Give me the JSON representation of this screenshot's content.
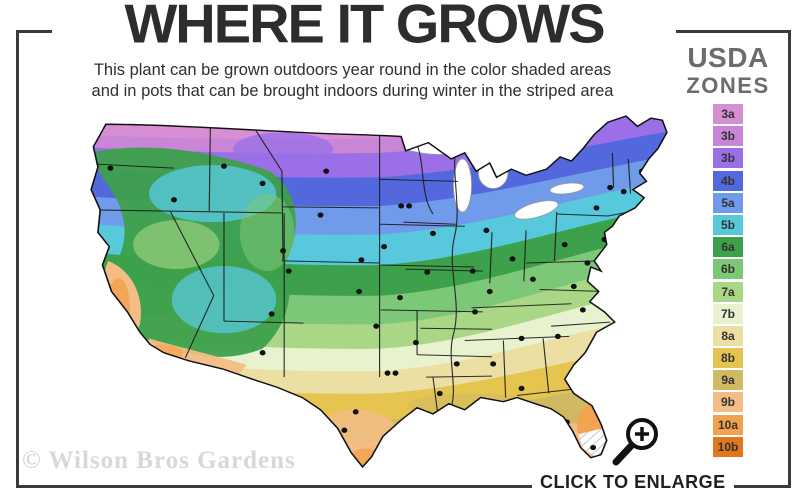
{
  "header": {
    "title": "WHERE IT GROWS",
    "subtitle_line1": "This plant can be grown outdoors year round in the color shaded areas",
    "subtitle_line2": "and in pots that can be brought indoors during winter in the striped area"
  },
  "legend": {
    "title_line1": "USDA",
    "title_line2": "ZONES",
    "zones": [
      {
        "label": "3a",
        "color": "#d78fd4"
      },
      {
        "label": "3b",
        "color": "#c986d6"
      },
      {
        "label": "3b",
        "color": "#9a6fe8"
      },
      {
        "label": "4b",
        "color": "#5468dd"
      },
      {
        "label": "5a",
        "color": "#6f9bea"
      },
      {
        "label": "5b",
        "color": "#58c8dd"
      },
      {
        "label": "6a",
        "color": "#3da04b"
      },
      {
        "label": "6b",
        "color": "#7cc878"
      },
      {
        "label": "7a",
        "color": "#aad785"
      },
      {
        "label": "7b",
        "color": "#e9f2cf"
      },
      {
        "label": "8a",
        "color": "#ecdfa3"
      },
      {
        "label": "8b",
        "color": "#e5c54f"
      },
      {
        "label": "9a",
        "color": "#d1b964"
      },
      {
        "label": "9b",
        "color": "#f3bd85"
      },
      {
        "label": "10a",
        "color": "#f2a24d"
      },
      {
        "label": "10b",
        "color": "#e0761d"
      }
    ]
  },
  "map": {
    "description": "USDA hardiness zone map of the continental United States with city dots and striped overwinter-indoors area in south Florida",
    "frame_color": "#3a3a3a",
    "dot_color": "#111111",
    "state_line_color": "#1a1a1a"
  },
  "footer": {
    "watermark": "© Wilson Bros Gardens",
    "enlarge_label": "CLICK TO ENLARGE"
  }
}
